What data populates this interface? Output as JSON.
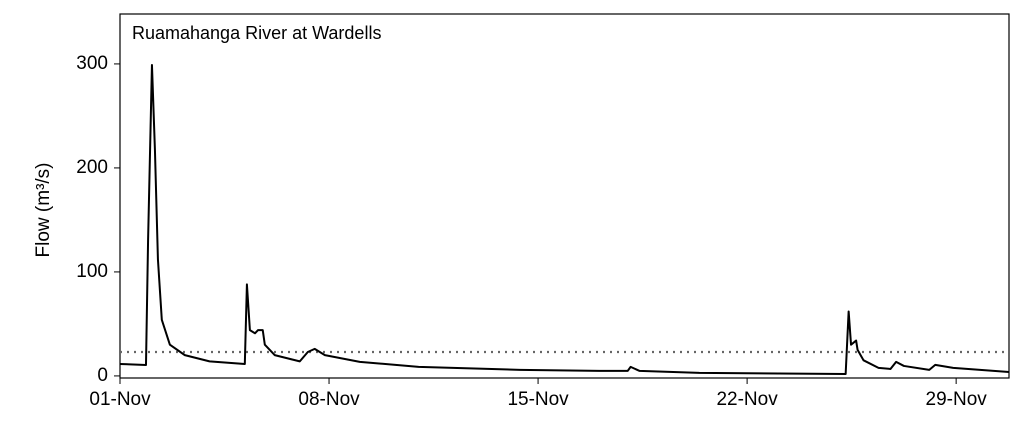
{
  "chart_data": {
    "type": "line",
    "title": "Ruamahanga River at Wardells",
    "y_label": "Flow (m³/s)",
    "x": [
      0,
      0.87,
      0.94,
      1.07,
      1.17,
      1.27,
      1.4,
      1.67,
      2.17,
      3.0,
      4.18,
      4.25,
      4.35,
      4.52,
      4.62,
      4.78,
      4.85,
      5.18,
      6.02,
      6.29,
      6.52,
      6.86,
      8.03,
      10.0,
      13.4,
      16.05,
      17.0,
      17.1,
      17.4,
      19.4,
      24.3,
      24.4,
      24.48,
      24.65,
      24.7,
      24.9,
      25.4,
      25.8,
      25.99,
      26.25,
      27.1,
      27.3,
      27.9,
      29.77
    ],
    "series": [
      {
        "name": "Flow",
        "color": "#000000",
        "values": [
          11.5,
          10.5,
          130,
          299,
          217,
          112,
          54,
          30,
          20,
          14,
          11.5,
          88,
          44,
          41,
          44,
          44,
          30,
          20,
          14,
          23,
          26,
          20,
          13.5,
          8.7,
          5.8,
          4.8,
          4.8,
          8.7,
          4.8,
          2.9,
          1.9,
          62,
          30,
          34,
          25,
          15,
          7.7,
          6.7,
          13.5,
          9.6,
          5.8,
          10.6,
          7.7,
          3.8
        ]
      }
    ],
    "reference_line": {
      "value": 23,
      "color": "#666666",
      "style": "dotted"
    },
    "xlim": [
      0,
      29.77
    ],
    "xticks": [
      {
        "value": 0,
        "label": "01-Nov"
      },
      {
        "value": 7,
        "label": "08-Nov"
      },
      {
        "value": 14,
        "label": "15-Nov"
      },
      {
        "value": 21,
        "label": "22-Nov"
      },
      {
        "value": 28,
        "label": "29-Nov"
      }
    ],
    "ylim": [
      -2,
      348
    ],
    "yticks": [
      0,
      100,
      200,
      300
    ],
    "grid": false
  }
}
